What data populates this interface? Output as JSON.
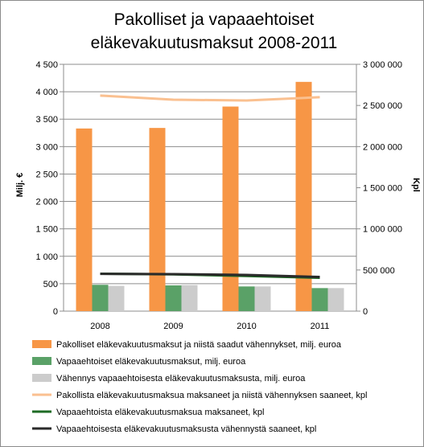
{
  "chart_data": {
    "type": "bar",
    "title_line1": "Pakolliset ja vapaaehtoiset",
    "title_line2": "eläkevakuutusmaksut 2008-2011",
    "ylabel_left": "Milj. €",
    "ylabel_right": "Kpl",
    "categories": [
      "2008",
      "2009",
      "2010",
      "2011"
    ],
    "ylim_left": [
      0,
      4500
    ],
    "ylim_right": [
      0,
      3000000
    ],
    "yticks_left": [
      "0",
      "500",
      "1 000",
      "1 500",
      "2 000",
      "2 500",
      "3 000",
      "3 500",
      "4 000",
      "4 500"
    ],
    "yticks_right": [
      "0",
      "500 000",
      "1 000 000",
      "1 500 000",
      "2 000 000",
      "2 500 000",
      "3 000 000"
    ],
    "grid": true,
    "legend_position": "bottom",
    "bar_series": [
      {
        "name": "Pakolliset eläkevakuutusmaksut ja niistä saadut vähennykset, milj. euroa",
        "axis": "left",
        "color": "#f79646",
        "values": [
          3330,
          3340,
          3730,
          4180
        ]
      },
      {
        "name": "Vapaaehtoiset eläkevakuutusmaksut, milj. euroa",
        "axis": "left",
        "color": "#5aa167",
        "values": [
          480,
          470,
          450,
          420
        ]
      },
      {
        "name": "Vähennys vapaaehtoisesta eläkevakuutusmaksusta, milj. euroa",
        "axis": "left",
        "color": "#cccccc",
        "values": [
          460,
          475,
          450,
          420
        ]
      }
    ],
    "line_series": [
      {
        "name": "Pakollista eläkevakuutusmaksua maksaneet ja niistä vähennyksen saaneet, kpl",
        "axis": "right",
        "color": "#fac090",
        "values": [
          2620000,
          2570000,
          2560000,
          2600000
        ]
      },
      {
        "name": "Vapaaehtoista eläkevakuutusmaksua maksaneet, kpl",
        "axis": "right",
        "color": "#1e6b24",
        "values": [
          455000,
          447000,
          428000,
          405000
        ]
      },
      {
        "name": "Vapaaehtoisesta eläkevakuutusmaksusta vähennystä saaneet, kpl",
        "axis": "right",
        "color": "#2a2a2a",
        "values": [
          453000,
          450000,
          440000,
          415000
        ]
      }
    ]
  }
}
